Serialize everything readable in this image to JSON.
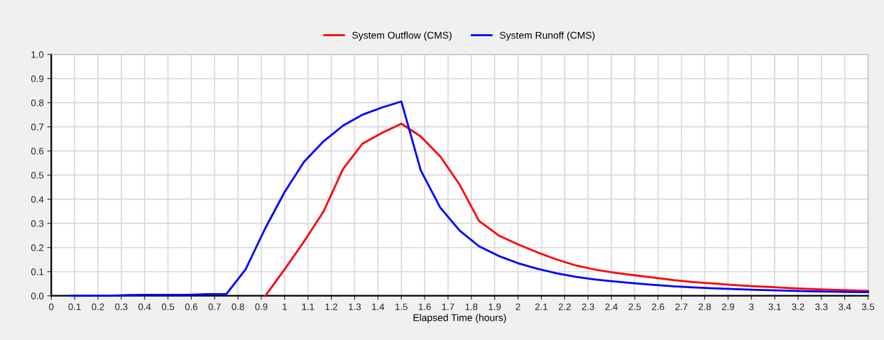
{
  "chart_data": {
    "type": "line",
    "xlabel": "Elapsed Time (hours)",
    "xlim": [
      0,
      3.5
    ],
    "ylim": [
      0,
      1.0
    ],
    "xticks": [
      0,
      0.1,
      0.2,
      0.3,
      0.4,
      0.5,
      0.6,
      0.7,
      0.8,
      0.9,
      1,
      1.1,
      1.2,
      1.3,
      1.4,
      1.5,
      1.6,
      1.7,
      1.8,
      1.9,
      2,
      2.1,
      2.2,
      2.3,
      2.4,
      2.5,
      2.6,
      2.7,
      2.8,
      2.9,
      3,
      3.1,
      3.2,
      3.3,
      3.4,
      3.5
    ],
    "yticks": [
      {
        "value": 0,
        "label": "0.0"
      },
      0.1,
      0.2,
      0.3,
      0.4,
      0.5,
      0.6,
      0.7,
      0.8,
      0.9,
      {
        "value": 1.0,
        "label": "1.0"
      }
    ],
    "grid": true,
    "legend": "top",
    "line_style": "solid",
    "marker": "none",
    "series": [
      {
        "name": "System Outflow (CMS)",
        "color": "#ff0000",
        "x": [
          0.917,
          1.0,
          1.083,
          1.167,
          1.25,
          1.333,
          1.417,
          1.5,
          1.583,
          1.667,
          1.75,
          1.833,
          1.917,
          2.0,
          2.083,
          2.167,
          2.25,
          2.333,
          2.417,
          2.5,
          2.583,
          2.667,
          2.75,
          2.833,
          2.917,
          3.0,
          3.083,
          3.167,
          3.25,
          3.333,
          3.417,
          3.5
        ],
        "values": [
          0,
          0.11,
          0.225,
          0.35,
          0.525,
          0.63,
          0.675,
          0.713,
          0.66,
          0.577,
          0.46,
          0.31,
          0.25,
          0.213,
          0.18,
          0.15,
          0.125,
          0.108,
          0.095,
          0.085,
          0.075,
          0.065,
          0.057,
          0.051,
          0.045,
          0.04,
          0.036,
          0.032,
          0.028,
          0.025,
          0.023,
          0.02
        ]
      },
      {
        "name": "System Runoff (CMS)",
        "color": "#0000ff",
        "x": [
          0.083,
          0.167,
          0.25,
          0.333,
          0.417,
          0.5,
          0.583,
          0.667,
          0.75,
          0.833,
          0.917,
          1.0,
          1.083,
          1.167,
          1.25,
          1.333,
          1.417,
          1.5,
          1.583,
          1.667,
          1.75,
          1.833,
          1.917,
          2.0,
          2.083,
          2.167,
          2.25,
          2.333,
          2.417,
          2.5,
          2.583,
          2.667,
          2.75,
          2.833,
          2.917,
          3.0,
          3.083,
          3.167,
          3.25,
          3.333,
          3.417,
          3.5
        ],
        "values": [
          0,
          0,
          0,
          0.003,
          0.004,
          0.004,
          0.004,
          0.007,
          0.007,
          0.11,
          0.28,
          0.43,
          0.555,
          0.64,
          0.705,
          0.75,
          0.78,
          0.805,
          0.52,
          0.365,
          0.27,
          0.205,
          0.165,
          0.135,
          0.112,
          0.093,
          0.078,
          0.067,
          0.059,
          0.052,
          0.045,
          0.039,
          0.035,
          0.031,
          0.028,
          0.025,
          0.023,
          0.021,
          0.019,
          0.017,
          0.016,
          0.015
        ]
      }
    ]
  }
}
